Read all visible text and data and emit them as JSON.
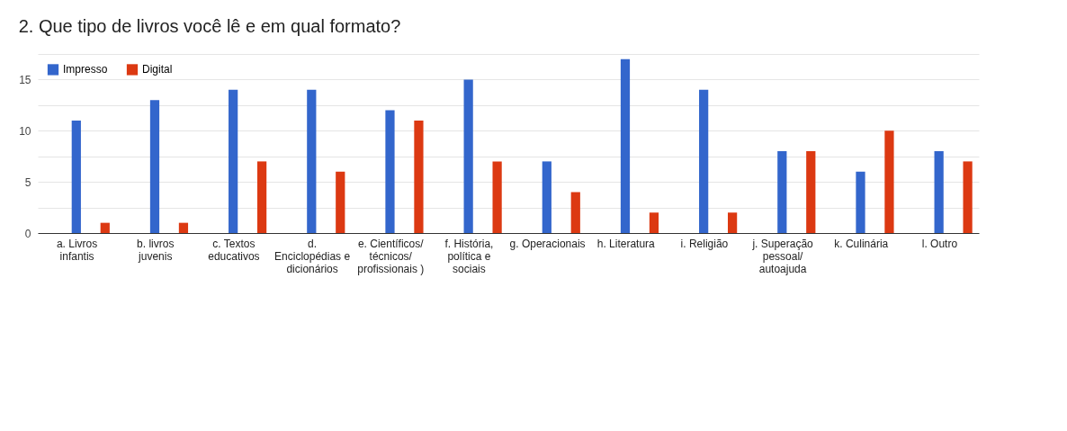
{
  "chart_data": {
    "type": "bar",
    "title": "2. Que tipo de livros você lê e em qual formato?",
    "categories": [
      "a. Livros infantis",
      "b. livros juvenis",
      "c. Textos educativos",
      "d. Enciclopédias e dicionários",
      "e. Científicos/ técnicos/ profissionais )",
      "f. História, política e sociais",
      "g. Operacionais",
      "h. Literatura",
      "i. Religião",
      "j. Superação pessoal/ autoajuda",
      "k. Culinária",
      "l. Outro"
    ],
    "series": [
      {
        "name": "Impresso",
        "color": "#3366cc",
        "values": [
          11,
          13,
          14,
          14,
          12,
          15,
          7,
          17,
          14,
          8,
          6,
          8
        ]
      },
      {
        "name": "Digital",
        "color": "#dc3912",
        "values": [
          1,
          1,
          7,
          6,
          11,
          7,
          4,
          2,
          2,
          8,
          10,
          7
        ]
      }
    ],
    "ylim": [
      0,
      17.5
    ],
    "yticks": [
      0,
      {
        "value": 2.5,
        "label": null
      },
      5,
      {
        "value": 7.5,
        "label": null
      },
      10,
      {
        "value": 12.5,
        "label": null
      },
      15,
      {
        "value": 17.5,
        "label": null
      }
    ],
    "grid": true,
    "legend": "top left"
  }
}
